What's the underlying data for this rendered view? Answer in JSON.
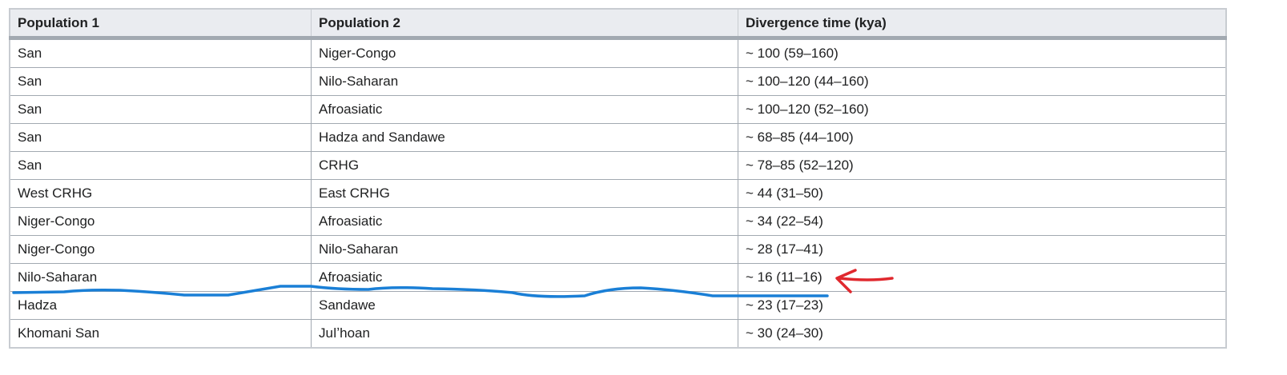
{
  "table": {
    "header": [
      "Population 1",
      "Population 2",
      "Divergence time (kya)"
    ],
    "rows": [
      [
        "San",
        "Niger-Congo",
        "~ 100 (59–160)"
      ],
      [
        "San",
        "Nilo-Saharan",
        "~ 100–120 (44–160)"
      ],
      [
        "San",
        "Afroasiatic",
        "~ 100–120 (52–160)"
      ],
      [
        "San",
        "Hadza and Sandawe",
        "~ 68–85 (44–100)"
      ],
      [
        "San",
        "CRHG",
        "~ 78–85 (52–120)"
      ],
      [
        "West CRHG",
        "East CRHG",
        "~ 44 (31–50)"
      ],
      [
        "Niger-Congo",
        "Afroasiatic",
        "~ 34 (22–54)"
      ],
      [
        "Niger-Congo",
        "Nilo-Saharan",
        "~ 28 (17–41)"
      ],
      [
        "Nilo-Saharan",
        "Afroasiatic",
        "~ 16 (11–16)"
      ],
      [
        "Hadza",
        "Sandawe",
        "~ 23 (17–23)"
      ],
      [
        "Khomani San",
        "Juǀʼhoan",
        "~ 30 (24–30)"
      ]
    ]
  }
}
